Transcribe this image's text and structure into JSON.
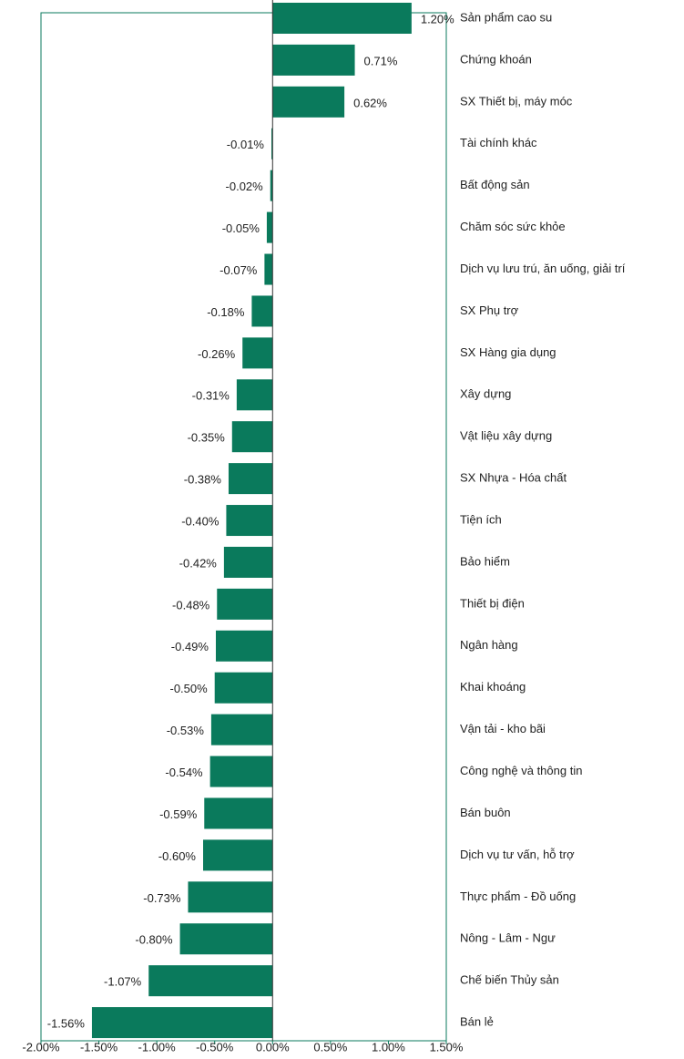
{
  "chart_data": {
    "type": "bar",
    "orientation": "horizontal",
    "color": "#0a7a5c",
    "categories": [
      "Sản phẩm cao su",
      "Chứng khoán",
      "SX Thiết bị, máy móc",
      "Tài chính khác",
      "Bất động sản",
      "Chăm sóc sức khỏe",
      "Dịch vụ lưu trú, ăn uống, giải trí",
      "SX Phụ trợ",
      "SX Hàng gia dụng",
      "Xây dựng",
      "Vật liệu xây dựng",
      "SX Nhựa - Hóa chất",
      "Tiện ích",
      "Bảo hiểm",
      "Thiết bị điện",
      "Ngân hàng",
      "Khai khoáng",
      "Vận tải - kho bãi",
      "Công nghệ và thông tin",
      "Bán buôn",
      "Dịch vụ tư vấn, hỗ trợ",
      "Thực phẩm - Đồ uống",
      "Nông - Lâm - Ngư",
      "Chế biến Thủy sản",
      "Bán lẻ"
    ],
    "values": [
      1.2,
      0.71,
      0.62,
      -0.01,
      -0.02,
      -0.05,
      -0.07,
      -0.18,
      -0.26,
      -0.31,
      -0.35,
      -0.38,
      -0.4,
      -0.42,
      -0.48,
      -0.49,
      -0.5,
      -0.53,
      -0.54,
      -0.59,
      -0.6,
      -0.73,
      -0.8,
      -1.07,
      -1.56
    ],
    "value_labels": [
      "1.20%",
      "0.71%",
      "0.62%",
      "-0.01%",
      "-0.02%",
      "-0.05%",
      "-0.07%",
      "-0.18%",
      "-0.26%",
      "-0.31%",
      "-0.35%",
      "-0.38%",
      "-0.40%",
      "-0.42%",
      "-0.48%",
      "-0.49%",
      "-0.50%",
      "-0.53%",
      "-0.54%",
      "-0.59%",
      "-0.60%",
      "-0.73%",
      "-0.80%",
      "-1.07%",
      "-1.56%"
    ],
    "xlim": [
      -2.0,
      1.5
    ],
    "xticks": [
      {
        "value": -2.0,
        "label": "-2.00%"
      },
      {
        "value": -1.5,
        "label": "-1.50%"
      },
      {
        "value": -1.0,
        "label": "-1.00%"
      },
      {
        "value": -0.5,
        "label": "-0.50%"
      },
      {
        "value": 0,
        "label": "0.00%"
      },
      {
        "value": 0.5,
        "label": "0.50%"
      },
      {
        "value": 1.0,
        "label": "1.00%"
      },
      {
        "value": 1.5,
        "label": "1.50%"
      }
    ]
  }
}
